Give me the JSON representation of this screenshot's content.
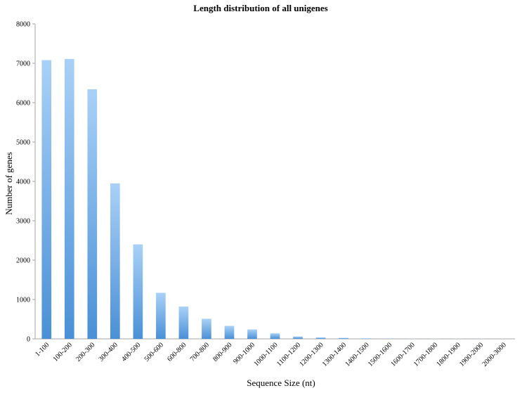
{
  "chart_data": {
    "type": "bar",
    "title": "Length distribution of all unigenes",
    "xlabel": "Sequence Size (nt)",
    "ylabel": "Number of genes",
    "ylim": [
      0,
      8000
    ],
    "yticks": [
      0,
      1000,
      2000,
      3000,
      4000,
      5000,
      6000,
      7000,
      8000
    ],
    "grid": false,
    "legend": "none",
    "categories": [
      "1-100",
      "100-200",
      "200-300",
      "300-400",
      "400-500",
      "500-600",
      "600-800",
      "700-800",
      "800-900",
      "900-1000",
      "1000-1100",
      "1100-1200",
      "1200-1300",
      "1300-1400",
      "1400-1500",
      "1500-1600",
      "1600-1700",
      "1700-1800",
      "1800-1900",
      "1900-2000",
      "2000-3000"
    ],
    "values": [
      7080,
      7110,
      6340,
      3950,
      2400,
      1170,
      820,
      510,
      330,
      240,
      140,
      60,
      35,
      25,
      12,
      8,
      6,
      5,
      4,
      3,
      2
    ],
    "bar_color_top": "#a9d1f7",
    "bar_color_bottom": "#4a90d6"
  }
}
